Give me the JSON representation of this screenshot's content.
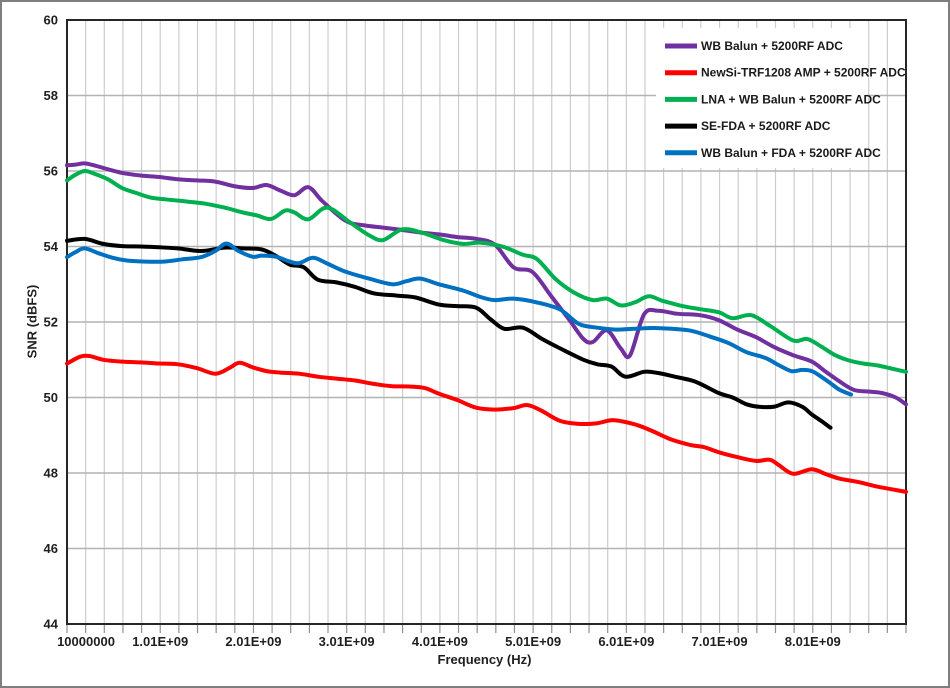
{
  "figure": {
    "background": "#ffffff",
    "outer_border_color": "#7f7f7f",
    "plot_border_color": "#262626",
    "gridline_vertical_color": "#cdcdcd",
    "gridline_horizontal_color": "#b3b3b3",
    "tick_mark_color": "#8f8f8f",
    "text_color": "#1f1f1f"
  },
  "chart_data": {
    "type": "line",
    "title": "",
    "xlabel": "Frequency (Hz)",
    "ylabel": "SNR (dBFS)",
    "x_unit_note": "x values stored in GHz; axis labels shown in Hz scientific notation",
    "xlim": [
      0.01,
      9.01
    ],
    "ylim": [
      44,
      60
    ],
    "x_minor_step": 0.2,
    "y_major_step": 2,
    "grid": "vertical-minor + horizontal-major",
    "legend_position": "top-right-inside",
    "x_ticks": [
      {
        "value": 0.01,
        "label": "10000000",
        "dx": 19
      },
      {
        "value": 1.01,
        "label": "1.01E+09",
        "dx": 0
      },
      {
        "value": 2.01,
        "label": "2.01E+09",
        "dx": 0
      },
      {
        "value": 3.01,
        "label": "3.01E+09",
        "dx": 0
      },
      {
        "value": 4.01,
        "label": "4.01E+09",
        "dx": 0
      },
      {
        "value": 5.01,
        "label": "5.01E+09",
        "dx": 0
      },
      {
        "value": 6.01,
        "label": "6.01E+09",
        "dx": 0
      },
      {
        "value": 7.01,
        "label": "7.01E+09",
        "dx": 0
      },
      {
        "value": 8.01,
        "label": "8.01E+09",
        "dx": 0
      }
    ],
    "y_ticks": [
      {
        "value": 60,
        "label": "60"
      },
      {
        "value": 58,
        "label": "58"
      },
      {
        "value": 56,
        "label": "56"
      },
      {
        "value": 54,
        "label": "54"
      },
      {
        "value": 52,
        "label": "52"
      },
      {
        "value": 50,
        "label": "50"
      },
      {
        "value": 48,
        "label": "48"
      },
      {
        "value": 46,
        "label": "46"
      },
      {
        "value": 44,
        "label": "44"
      }
    ],
    "series": [
      {
        "name": "WB Balun + 5200RF ADC",
        "color": "#7030A0",
        "points": [
          [
            0.01,
            56.15
          ],
          [
            0.1,
            56.17
          ],
          [
            0.2,
            56.2
          ],
          [
            0.3,
            56.15
          ],
          [
            0.4,
            56.08
          ],
          [
            0.6,
            55.95
          ],
          [
            0.8,
            55.88
          ],
          [
            1.0,
            55.84
          ],
          [
            1.2,
            55.78
          ],
          [
            1.4,
            55.75
          ],
          [
            1.6,
            55.72
          ],
          [
            1.8,
            55.6
          ],
          [
            2.0,
            55.55
          ],
          [
            2.15,
            55.63
          ],
          [
            2.3,
            55.48
          ],
          [
            2.45,
            55.36
          ],
          [
            2.6,
            55.57
          ],
          [
            2.75,
            55.2
          ],
          [
            3.0,
            54.68
          ],
          [
            3.2,
            54.56
          ],
          [
            3.4,
            54.5
          ],
          [
            3.6,
            54.44
          ],
          [
            3.8,
            54.37
          ],
          [
            4.0,
            54.32
          ],
          [
            4.2,
            54.25
          ],
          [
            4.4,
            54.2
          ],
          [
            4.6,
            54.05
          ],
          [
            4.8,
            53.45
          ],
          [
            5.0,
            53.33
          ],
          [
            5.2,
            52.7
          ],
          [
            5.4,
            52.05
          ],
          [
            5.55,
            51.55
          ],
          [
            5.65,
            51.47
          ],
          [
            5.8,
            51.78
          ],
          [
            5.95,
            51.3
          ],
          [
            6.05,
            51.12
          ],
          [
            6.2,
            52.2
          ],
          [
            6.35,
            52.3
          ],
          [
            6.55,
            52.22
          ],
          [
            6.8,
            52.18
          ],
          [
            7.0,
            52.05
          ],
          [
            7.2,
            51.8
          ],
          [
            7.4,
            51.6
          ],
          [
            7.6,
            51.33
          ],
          [
            7.8,
            51.12
          ],
          [
            8.0,
            50.95
          ],
          [
            8.15,
            50.68
          ],
          [
            8.3,
            50.42
          ],
          [
            8.45,
            50.2
          ],
          [
            8.6,
            50.16
          ],
          [
            8.75,
            50.12
          ],
          [
            8.9,
            50.0
          ],
          [
            9.01,
            49.82
          ]
        ]
      },
      {
        "name": "NewSi-TRF1208 AMP + 5200RF ADC",
        "color": "#FF0000",
        "points": [
          [
            0.01,
            50.9
          ],
          [
            0.15,
            51.08
          ],
          [
            0.25,
            51.1
          ],
          [
            0.4,
            51.0
          ],
          [
            0.6,
            50.95
          ],
          [
            0.8,
            50.93
          ],
          [
            1.0,
            50.9
          ],
          [
            1.2,
            50.88
          ],
          [
            1.4,
            50.78
          ],
          [
            1.6,
            50.63
          ],
          [
            1.75,
            50.78
          ],
          [
            1.86,
            50.92
          ],
          [
            2.0,
            50.8
          ],
          [
            2.15,
            50.7
          ],
          [
            2.3,
            50.66
          ],
          [
            2.5,
            50.63
          ],
          [
            2.7,
            50.55
          ],
          [
            2.9,
            50.5
          ],
          [
            3.1,
            50.45
          ],
          [
            3.3,
            50.36
          ],
          [
            3.5,
            50.3
          ],
          [
            3.7,
            50.29
          ],
          [
            3.85,
            50.25
          ],
          [
            4.0,
            50.1
          ],
          [
            4.2,
            49.93
          ],
          [
            4.4,
            49.73
          ],
          [
            4.6,
            49.68
          ],
          [
            4.8,
            49.72
          ],
          [
            4.95,
            49.8
          ],
          [
            5.1,
            49.65
          ],
          [
            5.3,
            49.38
          ],
          [
            5.5,
            49.3
          ],
          [
            5.7,
            49.32
          ],
          [
            5.85,
            49.4
          ],
          [
            6.0,
            49.35
          ],
          [
            6.15,
            49.25
          ],
          [
            6.3,
            49.1
          ],
          [
            6.5,
            48.88
          ],
          [
            6.7,
            48.74
          ],
          [
            6.85,
            48.68
          ],
          [
            7.0,
            48.55
          ],
          [
            7.2,
            48.42
          ],
          [
            7.4,
            48.32
          ],
          [
            7.55,
            48.35
          ],
          [
            7.65,
            48.2
          ],
          [
            7.8,
            47.98
          ],
          [
            8.0,
            48.1
          ],
          [
            8.15,
            47.97
          ],
          [
            8.3,
            47.85
          ],
          [
            8.5,
            47.76
          ],
          [
            8.7,
            47.64
          ],
          [
            8.9,
            47.55
          ],
          [
            9.01,
            47.5
          ]
        ]
      },
      {
        "name": "LNA + WB Balun + 5200RF ADC",
        "color": "#00B050",
        "points": [
          [
            0.01,
            55.75
          ],
          [
            0.1,
            55.9
          ],
          [
            0.2,
            56.0
          ],
          [
            0.3,
            55.93
          ],
          [
            0.45,
            55.78
          ],
          [
            0.6,
            55.55
          ],
          [
            0.75,
            55.42
          ],
          [
            0.9,
            55.3
          ],
          [
            1.1,
            55.24
          ],
          [
            1.3,
            55.19
          ],
          [
            1.5,
            55.13
          ],
          [
            1.7,
            55.03
          ],
          [
            1.9,
            54.9
          ],
          [
            2.05,
            54.82
          ],
          [
            2.2,
            54.73
          ],
          [
            2.35,
            54.95
          ],
          [
            2.45,
            54.9
          ],
          [
            2.6,
            54.72
          ],
          [
            2.8,
            55.03
          ],
          [
            3.05,
            54.63
          ],
          [
            3.25,
            54.3
          ],
          [
            3.4,
            54.17
          ],
          [
            3.6,
            54.45
          ],
          [
            3.8,
            54.38
          ],
          [
            4.05,
            54.17
          ],
          [
            4.25,
            54.07
          ],
          [
            4.45,
            54.1
          ],
          [
            4.68,
            54.0
          ],
          [
            4.9,
            53.78
          ],
          [
            5.05,
            53.67
          ],
          [
            5.25,
            53.14
          ],
          [
            5.45,
            52.78
          ],
          [
            5.65,
            52.58
          ],
          [
            5.8,
            52.62
          ],
          [
            5.95,
            52.44
          ],
          [
            6.1,
            52.52
          ],
          [
            6.25,
            52.68
          ],
          [
            6.4,
            52.56
          ],
          [
            6.6,
            52.43
          ],
          [
            6.8,
            52.34
          ],
          [
            7.0,
            52.26
          ],
          [
            7.15,
            52.1
          ],
          [
            7.35,
            52.18
          ],
          [
            7.55,
            51.9
          ],
          [
            7.8,
            51.51
          ],
          [
            7.95,
            51.55
          ],
          [
            8.1,
            51.35
          ],
          [
            8.25,
            51.12
          ],
          [
            8.4,
            50.98
          ],
          [
            8.55,
            50.9
          ],
          [
            8.7,
            50.85
          ],
          [
            8.85,
            50.77
          ],
          [
            9.01,
            50.68
          ]
        ]
      },
      {
        "name": "SE-FDA + 5200RF ADC",
        "color": "#000000",
        "points": [
          [
            0.01,
            54.15
          ],
          [
            0.2,
            54.2
          ],
          [
            0.4,
            54.07
          ],
          [
            0.6,
            54.01
          ],
          [
            0.8,
            54.0
          ],
          [
            1.0,
            53.98
          ],
          [
            1.2,
            53.95
          ],
          [
            1.45,
            53.88
          ],
          [
            1.7,
            53.97
          ],
          [
            1.9,
            53.95
          ],
          [
            2.1,
            53.92
          ],
          [
            2.25,
            53.75
          ],
          [
            2.4,
            53.52
          ],
          [
            2.55,
            53.45
          ],
          [
            2.7,
            53.12
          ],
          [
            2.9,
            53.05
          ],
          [
            3.1,
            52.93
          ],
          [
            3.3,
            52.76
          ],
          [
            3.55,
            52.7
          ],
          [
            3.75,
            52.65
          ],
          [
            4.0,
            52.46
          ],
          [
            4.2,
            52.42
          ],
          [
            4.4,
            52.38
          ],
          [
            4.55,
            52.08
          ],
          [
            4.7,
            51.82
          ],
          [
            4.9,
            51.85
          ],
          [
            5.1,
            51.56
          ],
          [
            5.3,
            51.3
          ],
          [
            5.55,
            51.0
          ],
          [
            5.7,
            50.88
          ],
          [
            5.85,
            50.82
          ],
          [
            6.0,
            50.55
          ],
          [
            6.2,
            50.68
          ],
          [
            6.35,
            50.65
          ],
          [
            6.55,
            50.54
          ],
          [
            6.75,
            50.42
          ],
          [
            7.0,
            50.12
          ],
          [
            7.15,
            50.0
          ],
          [
            7.3,
            49.82
          ],
          [
            7.45,
            49.75
          ],
          [
            7.6,
            49.76
          ],
          [
            7.75,
            49.87
          ],
          [
            7.9,
            49.75
          ],
          [
            8.0,
            49.55
          ],
          [
            8.1,
            49.38
          ],
          [
            8.2,
            49.2
          ]
        ]
      },
      {
        "name": "WB Balun + FDA + 5200RF ADC",
        "color": "#0070C0",
        "points": [
          [
            0.01,
            53.72
          ],
          [
            0.1,
            53.85
          ],
          [
            0.2,
            53.95
          ],
          [
            0.35,
            53.82
          ],
          [
            0.5,
            53.7
          ],
          [
            0.65,
            53.63
          ],
          [
            0.85,
            53.6
          ],
          [
            1.05,
            53.6
          ],
          [
            1.25,
            53.66
          ],
          [
            1.45,
            53.72
          ],
          [
            1.6,
            53.88
          ],
          [
            1.72,
            54.08
          ],
          [
            1.85,
            53.88
          ],
          [
            2.0,
            53.73
          ],
          [
            2.1,
            53.76
          ],
          [
            2.25,
            53.73
          ],
          [
            2.4,
            53.6
          ],
          [
            2.5,
            53.56
          ],
          [
            2.65,
            53.7
          ],
          [
            2.8,
            53.55
          ],
          [
            3.0,
            53.33
          ],
          [
            3.25,
            53.15
          ],
          [
            3.5,
            53.0
          ],
          [
            3.65,
            53.08
          ],
          [
            3.8,
            53.15
          ],
          [
            4.0,
            53.0
          ],
          [
            4.25,
            52.84
          ],
          [
            4.45,
            52.66
          ],
          [
            4.6,
            52.58
          ],
          [
            4.8,
            52.62
          ],
          [
            5.05,
            52.52
          ],
          [
            5.3,
            52.33
          ],
          [
            5.5,
            51.95
          ],
          [
            5.7,
            51.85
          ],
          [
            5.9,
            51.8
          ],
          [
            6.1,
            51.82
          ],
          [
            6.3,
            51.84
          ],
          [
            6.5,
            51.82
          ],
          [
            6.7,
            51.77
          ],
          [
            6.9,
            51.62
          ],
          [
            7.1,
            51.45
          ],
          [
            7.3,
            51.2
          ],
          [
            7.5,
            51.05
          ],
          [
            7.65,
            50.85
          ],
          [
            7.78,
            50.7
          ],
          [
            7.9,
            50.73
          ],
          [
            8.0,
            50.7
          ],
          [
            8.1,
            50.55
          ],
          [
            8.2,
            50.38
          ],
          [
            8.3,
            50.2
          ],
          [
            8.42,
            50.08
          ]
        ]
      }
    ]
  }
}
